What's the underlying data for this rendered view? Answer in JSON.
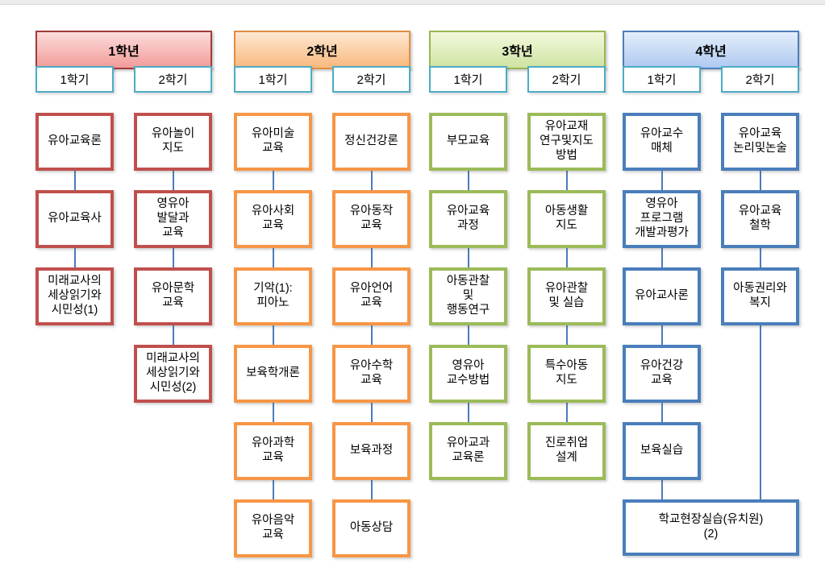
{
  "colors": {
    "tab_border": "#4BACC6",
    "connector": "#4B7CBB",
    "top_strip": "#ECECEC",
    "text": "#000000"
  },
  "years": [
    {
      "label": "1학년",
      "box_border": "#C0504D",
      "header": {
        "border": "#A03B3B",
        "grad_top": "#FCDCDC",
        "grad_bottom": "#F29C99"
      },
      "semesters": [
        {
          "label": "1학기",
          "courses": [
            "유아교육론",
            "유아교육사",
            "미래교사의\n세상읽기와\n시민성(1)"
          ]
        },
        {
          "label": "2학기",
          "courses": [
            "유아놀이\n지도",
            "영유아\n발달과\n교육",
            "유아문학\n교육",
            "미래교사의\n세상읽기와\n시민성(2)"
          ]
        }
      ]
    },
    {
      "label": "2학년",
      "box_border": "#F79646",
      "header": {
        "border": "#E08E44",
        "grad_top": "#FDE8D2",
        "grad_bottom": "#F9B97E"
      },
      "semesters": [
        {
          "label": "1학기",
          "courses": [
            "유아미술\n교육",
            "유아사회\n교육",
            "기악(1):\n피아노",
            "보육학개론",
            "유아과학\n교육",
            "유아음악\n교육"
          ]
        },
        {
          "label": "2학기",
          "courses": [
            "정신건강론",
            "유아동작\n교육",
            "유아언어\n교육",
            "유아수학\n교육",
            "보육과정",
            "아동상담"
          ]
        }
      ]
    },
    {
      "label": "3학년",
      "box_border": "#9BBB59",
      "header": {
        "border": "#9AB652",
        "grad_top": "#F2F9DC",
        "grad_bottom": "#CFE3A2"
      },
      "semesters": [
        {
          "label": "1학기",
          "courses": [
            "부모교육",
            "유아교육\n과정",
            "아동관찰\n및\n행동연구",
            "영유아\n교수방법",
            "유아교과\n교육론"
          ]
        },
        {
          "label": "2학기",
          "courses": [
            "유아교재\n연구및지도\n방법",
            "아동생활\n지도",
            "유아관찰\n및 실습",
            "특수아동\n지도",
            "진로취업\n설계"
          ]
        }
      ]
    },
    {
      "label": "4학년",
      "box_border": "#4A7EBB",
      "header": {
        "border": "#4A7EBB",
        "grad_top": "#E4EEFB",
        "grad_bottom": "#AFC9F0"
      },
      "semesters": [
        {
          "label": "1학기",
          "courses": [
            "유아교수\n매체",
            "영유아\n프로그램\n개발과평가",
            "유아교사론",
            "유아건강\n교육",
            "보육실습"
          ]
        },
        {
          "label": "2학기",
          "courses": [
            "유아교육\n논리및논술",
            "유아교육\n철학",
            "아동권리와\n복지"
          ]
        }
      ],
      "shared_course": "학교현장실습(유치원)\n(2)"
    }
  ]
}
